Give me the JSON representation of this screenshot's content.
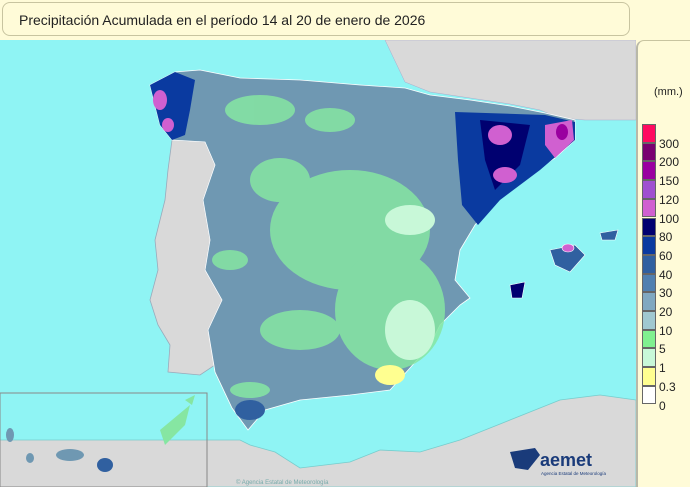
{
  "title": "Precipitación Acumulada en el período 14 al 20 de enero de 2026",
  "legend": {
    "unit": "(mm.)",
    "classes": [
      {
        "color": "#ff0a60"
      },
      {
        "label": "300",
        "color": "#7a0070"
      },
      {
        "label": "200",
        "color": "#9a00a0"
      },
      {
        "label": "150",
        "color": "#a050d0"
      },
      {
        "label": "120",
        "color": "#d060d0"
      },
      {
        "label": "100",
        "color": "#000070"
      },
      {
        "label": "80",
        "color": "#0a3aa0"
      },
      {
        "label": "60",
        "color": "#3060a0"
      },
      {
        "label": "40",
        "color": "#5080b0"
      },
      {
        "label": "30",
        "color": "#80a8c0"
      },
      {
        "label": "20",
        "color": "#a0c8d0"
      },
      {
        "label": "10",
        "color": "#80f090"
      },
      {
        "label": "5",
        "color": "#c8f8d8"
      },
      {
        "label": "1",
        "color": "#ffff90"
      },
      {
        "label": "0.3",
        "color": "#ffffff"
      }
    ],
    "bottom_label": "0"
  },
  "logo": {
    "text": "aemet",
    "subtitle": "Agencia Estatal de Meteorología"
  },
  "copyright": "© Agencia Estatal de Meteorología",
  "colors": {
    "sea": "#8ff4f4",
    "land_outside": "#d9d9d9",
    "background": "#fffbd8"
  }
}
